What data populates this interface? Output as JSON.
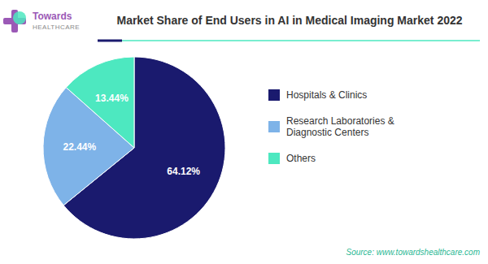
{
  "chart_data": {
    "type": "pie",
    "title": "Market Share of End Users in AI in Medical Imaging Market 2022",
    "categories": [
      "Hospitals & Clinics",
      "Research Laboratories &\nDiagnostic Centers",
      "Others"
    ],
    "values": [
      64.12,
      22.44,
      13.44
    ],
    "value_labels": [
      "64.12%",
      "22.44%",
      "13.44%"
    ],
    "colors": [
      "#1a1a6e",
      "#7eb3e8",
      "#4de8c0"
    ],
    "data_labels": true,
    "legend": "right",
    "annotations": [
      "Towards",
      "HEALTHCARE",
      "Source: www.towardshealthcare.com"
    ]
  }
}
